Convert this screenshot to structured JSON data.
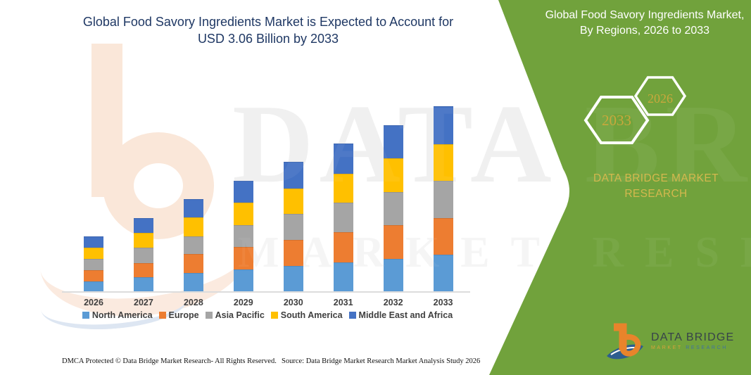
{
  "header": {
    "title": "Global Food Savory Ingredients Market is Expected to Account for USD 3.06 Billion by 2033"
  },
  "right_panel": {
    "title": "Global Food Savory Ingredients Market, By Regions, 2026 to 2033",
    "hexagons": [
      {
        "label": "2033"
      },
      {
        "label": "2026"
      }
    ],
    "brand": "DATA BRIDGE MARKET RESEARCH"
  },
  "watermark": {
    "line1": "DATA BRIDGE",
    "line2": "MARKET RESEARCH"
  },
  "chart_data": {
    "type": "bar",
    "stacked": true,
    "title": "Global Food Savory Ingredients Market, By Regions, 2026 to 2033",
    "unit": "USD Billion",
    "categories": [
      "2026",
      "2027",
      "2028",
      "2029",
      "2030",
      "2031",
      "2032",
      "2033"
    ],
    "series": [
      {
        "name": "North America",
        "color": "#5B9BD5",
        "values": [
          0.18,
          0.24,
          0.31,
          0.37,
          0.43,
          0.49,
          0.55,
          0.61
        ]
      },
      {
        "name": "Europe",
        "color": "#ED7D31",
        "values": [
          0.18,
          0.24,
          0.31,
          0.37,
          0.43,
          0.49,
          0.55,
          0.61
        ]
      },
      {
        "name": "Asia Pacific",
        "color": "#A5A5A5",
        "values": [
          0.19,
          0.25,
          0.3,
          0.36,
          0.43,
          0.49,
          0.55,
          0.61
        ]
      },
      {
        "name": "South America",
        "color": "#FFC000",
        "values": [
          0.18,
          0.24,
          0.31,
          0.37,
          0.42,
          0.48,
          0.55,
          0.61
        ]
      },
      {
        "name": "Middle East and Africa",
        "color": "#4472C4",
        "values": [
          0.19,
          0.25,
          0.3,
          0.36,
          0.43,
          0.49,
          0.55,
          0.62
        ]
      }
    ],
    "totals": [
      0.92,
      1.22,
      1.53,
      1.83,
      2.14,
      2.44,
      2.75,
      3.06
    ],
    "xlabel": "",
    "ylabel": "",
    "ylim": [
      0,
      3.2
    ],
    "grid": false,
    "value_axis_visible": false,
    "legend_position": "bottom"
  },
  "footer": {
    "left": "DMCA Protected © Data Bridge Market Research-  All Rights Reserved.",
    "source": "Source: Data Bridge Market Research  Market Analysis Study 2026"
  },
  "logo": {
    "name": "DATA BRIDGE",
    "subtitle_left": "MARKET",
    "subtitle_right": "RESEARCH"
  },
  "colors": {
    "panel_green": "#71A23C",
    "title_navy": "#1F3864",
    "gold_accent": "#C9A83C",
    "brand_gold": "#D4B84E"
  }
}
